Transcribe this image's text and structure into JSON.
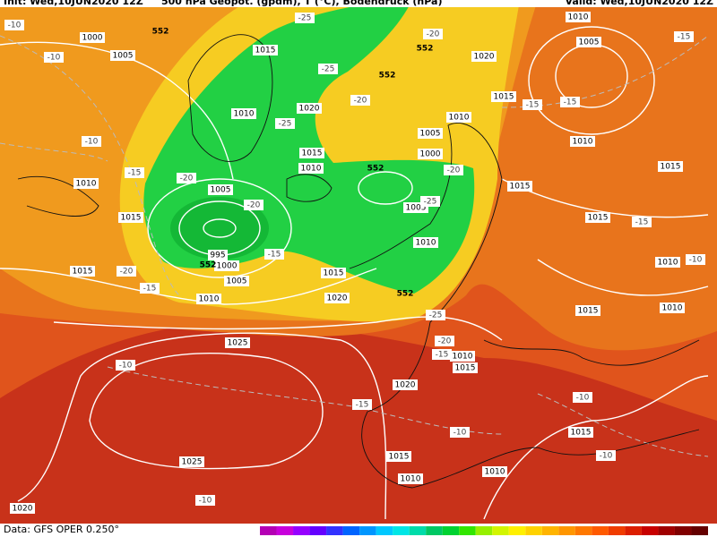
{
  "header": {
    "init": "Init: Wed,10JUN2020 12Z",
    "title": "500 hPa Geopot. (gpdm), T (°C), Bodendruck (hPa)",
    "valid": "Valid: Wed,10JUN2020 12Z"
  },
  "footer": {
    "source": "Data: GFS OPER 0.250°"
  },
  "isobar_labels": [
    "1000",
    "1005",
    "1015",
    "1010",
    "1020",
    "1015",
    "1010",
    "1005",
    "995",
    "1000",
    "1005",
    "1015",
    "1015",
    "1010",
    "1015",
    "1020",
    "1025",
    "1025",
    "1020",
    "1010",
    "1010",
    "1005",
    "1000",
    "1005",
    "1010",
    "1015",
    "1020",
    "1010",
    "1005",
    "1010",
    "1015",
    "1015",
    "1015",
    "1010",
    "1015",
    "1010",
    "1010",
    "1015",
    "1020",
    "1015",
    "1015",
    "1010",
    "1010"
  ],
  "temperature_labels": [
    "-10",
    "-10",
    "-10",
    "-15",
    "-20",
    "-20",
    "-15",
    "-20",
    "-15",
    "-25",
    "-20",
    "-25",
    "-20",
    "-15",
    "-15",
    "-15",
    "-15",
    "-10",
    "-20",
    "-25",
    "-25",
    "-20",
    "-15",
    "-15",
    "-10",
    "-10",
    "-10",
    "-10",
    "-10",
    "-25"
  ],
  "geopotential_labels": [
    "552",
    "552",
    "552",
    "552",
    "552",
    "552"
  ]
}
